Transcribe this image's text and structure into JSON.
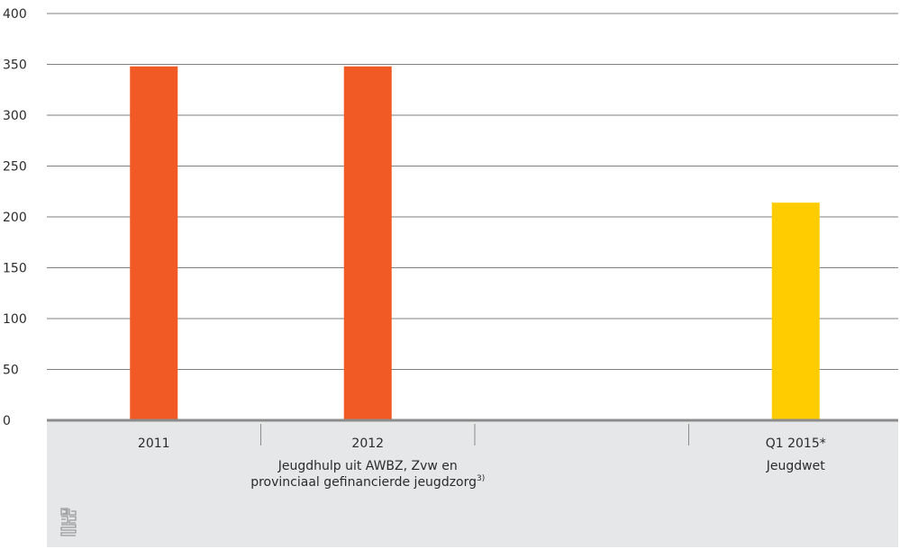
{
  "chart_data": {
    "type": "bar",
    "title": "",
    "xlabel": "",
    "ylabel": "",
    "ylim": [
      0,
      400
    ],
    "yticks": [
      0,
      50,
      100,
      150,
      200,
      250,
      300,
      350,
      400
    ],
    "grid": true,
    "categories": [
      "2011",
      "2012",
      "",
      "Q1 2015*"
    ],
    "values": [
      348,
      348,
      null,
      214
    ],
    "bar_colors": [
      "#f15a24",
      "#f15a24",
      null,
      "#ffcc00"
    ],
    "groups": [
      {
        "label_lines": [
          "Jeugdhulp uit AWBZ, Zvw en",
          "provinciaal gefinancierde jeugdzorg"
        ],
        "footnote": "3)",
        "span": [
          0,
          2
        ]
      },
      {
        "label_lines": [
          "Jeugdwet"
        ],
        "footnote": "",
        "span": [
          3,
          3
        ]
      }
    ]
  },
  "colors": {
    "axis_panel": "#e6e7e8",
    "axis_line": "#8c8c8c",
    "grid": "#7f7f7f"
  },
  "logo_icon": "cbs-logo-icon"
}
